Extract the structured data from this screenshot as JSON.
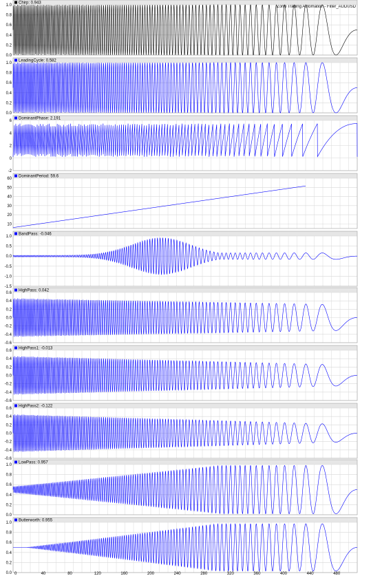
{
  "caption": "Zorro Trading Automation - Filter_AUDUSD",
  "colors": {
    "background": "#ffffff",
    "grid": "#d8d8d8",
    "header_band": "#e6e6e6",
    "panel_border": "#a0a0a0",
    "chirp": "#000000",
    "indicator": "#0000ff"
  },
  "chart_data": {
    "type": "line",
    "grid": true,
    "x_ticks": [
      "0",
      "40",
      "80",
      "120",
      "160",
      "200",
      "240",
      "280",
      "320",
      "360",
      "400",
      "440",
      "480"
    ],
    "panels": [
      {
        "name": "Chirp",
        "label": "Chirp: 0.943",
        "color": "#000000",
        "ylim": [
          0,
          1
        ],
        "yticks": [
          "0.0",
          "0.2",
          "0.4",
          "0.6",
          "0.8",
          "1.0"
        ],
        "signal": {
          "kind": "chirp_sine",
          "center": 0.5,
          "amp_start": 0.5,
          "amp_end": 0.5,
          "cycles": 115
        }
      },
      {
        "name": "LeadingCycle",
        "label": "LeadingCycle: 0.582",
        "color": "#0000ff",
        "ylim": [
          0,
          1
        ],
        "yticks": [
          "0.0",
          "0.2",
          "0.4",
          "0.6",
          "0.8",
          "1.0"
        ],
        "signal": {
          "kind": "chirp_sine",
          "center": 0.5,
          "amp_start": 0.5,
          "amp_end": 0.5,
          "cycles": 115
        }
      },
      {
        "name": "DominantPhase",
        "label": "DominantPhase: 2.191",
        "color": "#0000ff",
        "ylim": [
          -2,
          6
        ],
        "yticks": [
          "-2",
          "0",
          "2",
          "4",
          "6"
        ],
        "signal": {
          "kind": "sawtooth",
          "low": 0.2,
          "high": 5.5,
          "cycles": 115
        }
      },
      {
        "name": "DominantPeriod",
        "label": "DominantPeriod: 59.6",
        "color": "#0000ff",
        "ylim": [
          5,
          60
        ],
        "yticks": [
          "10",
          "20",
          "30",
          "40",
          "50",
          "60"
        ],
        "signal": {
          "kind": "ramp",
          "start": 6,
          "end": 59.6
        }
      },
      {
        "name": "BandPass",
        "label": "BandPass: -0.046",
        "color": "#0000ff",
        "ylim": [
          -1.5,
          1
        ],
        "yticks": [
          "-1.5",
          "-1.0",
          "-0.5",
          "0.0",
          "0.5",
          "1.0"
        ],
        "signal": {
          "kind": "bandpass",
          "center": 0,
          "peak": 0.92,
          "floor": 0.04,
          "tail": 0.16,
          "peak_pos": 0.43,
          "cycles": 115
        }
      },
      {
        "name": "HighPass",
        "label": "HighPass: 0.042",
        "color": "#0000ff",
        "ylim": [
          -0.6,
          0.6
        ],
        "yticks": [
          "-0.6",
          "-0.4",
          "-0.2",
          "0.0",
          "0.2",
          "0.4",
          "0.6"
        ],
        "signal": {
          "kind": "chirp_sine",
          "center": 0,
          "amp_start": 0.46,
          "amp_end": 0.3,
          "cycles": 115
        }
      },
      {
        "name": "HighPass1",
        "label": "HighPass1: -0.013",
        "color": "#0000ff",
        "ylim": [
          -0.6,
          0.6
        ],
        "yticks": [
          "-0.6",
          "-0.4",
          "-0.2",
          "0.0",
          "0.2",
          "0.4",
          "0.6"
        ],
        "signal": {
          "kind": "chirp_sine",
          "center": 0,
          "amp_start": 0.46,
          "amp_end": 0.24,
          "cycles": 115
        }
      },
      {
        "name": "HighPass2",
        "label": "HighPass2: -0.122",
        "color": "#0000ff",
        "ylim": [
          -0.6,
          0.6
        ],
        "yticks": [
          "-0.6",
          "-0.4",
          "-0.2",
          "0.0",
          "0.2",
          "0.4",
          "0.6"
        ],
        "signal": {
          "kind": "chirp_sine",
          "center": 0,
          "amp_start": 0.45,
          "amp_end": 0.2,
          "cycles": 115
        }
      },
      {
        "name": "LowPass",
        "label": "LowPass: 0.957",
        "color": "#0000ff",
        "ylim": [
          0,
          1
        ],
        "yticks": [
          "0.0",
          "0.2",
          "0.4",
          "0.6",
          "0.8",
          "1.0"
        ],
        "signal": {
          "kind": "chirp_sine",
          "center": 0.5,
          "amp_start": 0.06,
          "amp_end": 0.48,
          "cycles": 115
        }
      },
      {
        "name": "Butterworth",
        "label": "Butterworth: 0.955",
        "color": "#0000ff",
        "ylim": [
          0,
          1
        ],
        "yticks": [
          "0.0",
          "0.2",
          "0.4",
          "0.6",
          "0.8",
          "1.0"
        ],
        "signal": {
          "kind": "chirp_sine",
          "center": 0.5,
          "amp_start": 0.0,
          "amp_end": 0.47,
          "cycles": 115,
          "delay": 0.04
        }
      }
    ]
  }
}
